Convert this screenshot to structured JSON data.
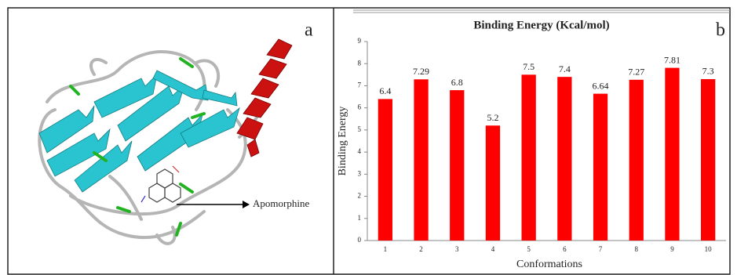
{
  "panel_a": {
    "label": "a",
    "annotation": "Apomorphine"
  },
  "chart_data": {
    "type": "bar",
    "panel_label": "b",
    "title": "Binding Energy (Kcal/mol)",
    "x_label": "Conformations",
    "y_label": "Binding Energy",
    "categories": [
      "1",
      "2",
      "3",
      "4",
      "5",
      "6",
      "7",
      "8",
      "9",
      "10"
    ],
    "values": [
      6.4,
      7.29,
      6.8,
      5.2,
      7.5,
      7.4,
      6.64,
      7.27,
      7.81,
      7.3
    ],
    "color": "#ff0000",
    "ylim": [
      0,
      9
    ],
    "yticks": [
      0,
      1,
      2,
      3,
      4,
      5,
      6,
      7,
      8,
      9
    ],
    "grid": false
  }
}
